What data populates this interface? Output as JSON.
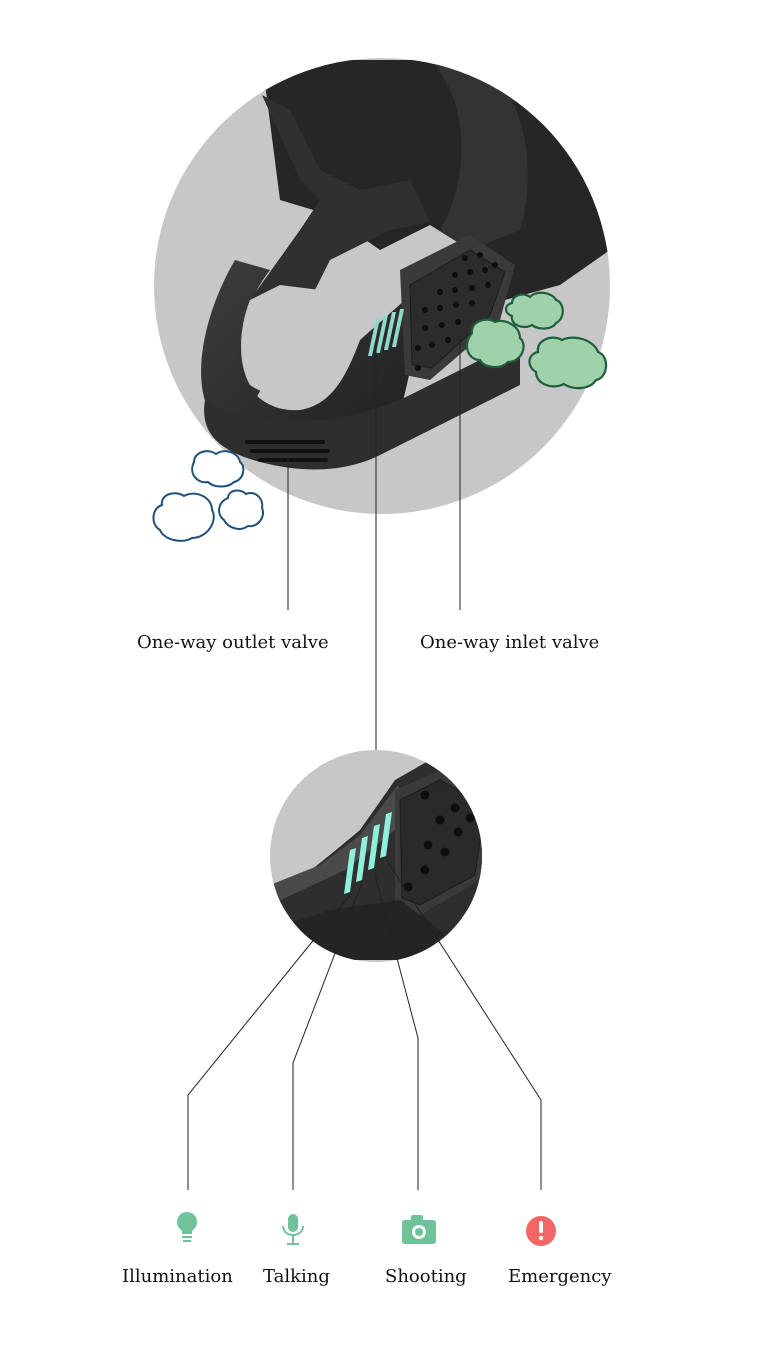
{
  "valves": {
    "outlet": "One-way outlet valve",
    "inlet": "One-way inlet valve"
  },
  "features": [
    {
      "label": "Illumination",
      "icon": "lightbulb-icon"
    },
    {
      "label": "Talking",
      "icon": "microphone-icon"
    },
    {
      "label": "Shooting",
      "icon": "camera-icon"
    },
    {
      "label": "Emergency",
      "icon": "alert-icon"
    }
  ],
  "colors": {
    "circle_bg": "#c8c8c8",
    "device": "#2b2b2b",
    "device_light": "#4a4a4a",
    "green_icon": "#6fc29a",
    "green_cloud": "#9dcfa8",
    "green_cloud_stroke": "#1f5e3c",
    "blue_cloud_stroke": "#1f4f7a",
    "alert_red": "#f26666",
    "led": "#8ff0dc"
  }
}
